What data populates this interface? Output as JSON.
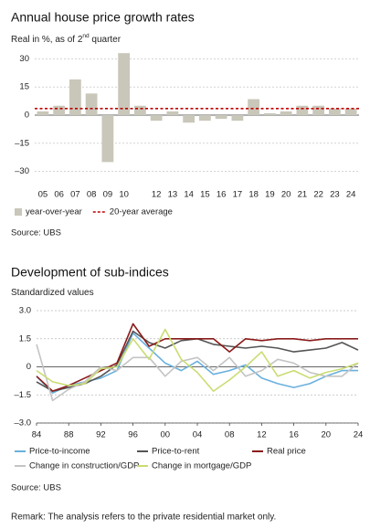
{
  "chart_data": [
    {
      "type": "bar",
      "title": "Annual house price growth rates",
      "subtitle": [
        "Real in %, as of 2",
        "nd",
        " quarter"
      ],
      "categories": [
        "05",
        "06",
        "07",
        "08",
        "09",
        "10",
        null,
        "12",
        "13",
        "14",
        "15",
        "16",
        "17",
        "18",
        "19",
        "20",
        "21",
        "22",
        "23",
        "24"
      ],
      "series": [
        {
          "name": "year-over-year",
          "color": "#c9c7b9",
          "values": [
            2,
            5,
            19,
            11.5,
            -25,
            33,
            5,
            -3,
            2,
            -4,
            -3,
            -2,
            -3,
            8.5,
            1,
            2,
            5,
            5,
            3.5,
            3.5
          ]
        }
      ],
      "reference_line": {
        "name": "20-year average",
        "value": 3.5,
        "color": "#c00000"
      },
      "ylim": [
        -36,
        36
      ],
      "yticks": [
        {
          "value": -30,
          "label": "–30"
        },
        {
          "value": -15,
          "label": "–15"
        },
        0,
        15,
        30
      ],
      "grid": true,
      "source": "Source: UBS"
    },
    {
      "type": "line",
      "title": "Development of sub-indices",
      "subtitle": [
        "Standardized values"
      ],
      "x": [
        1984,
        1986,
        1988,
        1990,
        1992,
        1994,
        1996,
        1998,
        2000,
        2002,
        2004,
        2006,
        2008,
        2010,
        2012,
        2014,
        2016,
        2018,
        2020,
        2022,
        2024
      ],
      "series": [
        {
          "name": "Price-to-income",
          "color": "#6ab0de",
          "values": [
            -0.5,
            -1.4,
            -1.0,
            -0.8,
            -0.6,
            -0.2,
            1.8,
            1.0,
            0.2,
            -0.2,
            0.3,
            -0.4,
            -0.2,
            0.1,
            -0.6,
            -0.9,
            -1.1,
            -0.9,
            -0.5,
            -0.2,
            -0.2
          ]
        },
        {
          "name": "Price-to-rent",
          "color": "#555555",
          "values": [
            -0.8,
            -1.3,
            -1.1,
            -0.9,
            -0.5,
            0.1,
            1.9,
            1.3,
            1.0,
            1.4,
            1.5,
            1.2,
            1.1,
            1.0,
            1.1,
            1.0,
            0.8,
            0.9,
            1.0,
            1.3,
            0.9
          ]
        },
        {
          "name": "Real price",
          "color": "#8b1a1a",
          "values": [
            -0.5,
            -1.3,
            -1.0,
            -0.6,
            -0.2,
            0.2,
            2.3,
            1.1,
            1.5,
            1.5,
            1.5,
            1.5,
            0.8,
            1.5,
            1.4,
            1.5,
            1.5,
            1.4,
            1.5,
            1.5,
            1.5
          ]
        },
        {
          "name": "Change in construction/GDP",
          "color": "#c4c4c4",
          "values": [
            1.2,
            -1.8,
            -1.2,
            -0.8,
            0.0,
            -0.2,
            0.5,
            0.5,
            -0.5,
            0.3,
            0.5,
            -0.2,
            0.5,
            -0.5,
            -0.2,
            0.4,
            0.2,
            -0.3,
            -0.5,
            -0.5,
            0.2
          ]
        },
        {
          "name": "Change in mortgage/GDP",
          "color": "#cadc72",
          "values": [
            -0.2,
            -0.8,
            -1.0,
            -0.9,
            -0.1,
            0.0,
            1.5,
            0.4,
            2.0,
            0.4,
            -0.3,
            -1.3,
            -0.7,
            0.0,
            0.8,
            -0.5,
            -0.2,
            -0.6,
            -0.3,
            -0.1,
            0.2
          ]
        }
      ],
      "xlim": [
        1984,
        2024
      ],
      "xticks": [
        {
          "value": 1984,
          "label": "84"
        },
        {
          "value": 1988,
          "label": "88"
        },
        {
          "value": 1992,
          "label": "92"
        },
        {
          "value": 1996,
          "label": "96"
        },
        {
          "value": 2000,
          "label": "00"
        },
        {
          "value": 2004,
          "label": "04"
        },
        {
          "value": 2008,
          "label": "08"
        },
        {
          "value": 2012,
          "label": "12"
        },
        {
          "value": 2016,
          "label": "16"
        },
        {
          "value": 2020,
          "label": "20"
        },
        {
          "value": 2024,
          "label": "24"
        }
      ],
      "ylim": [
        -3,
        3
      ],
      "yticks": [
        {
          "value": -3,
          "label": "–3.0"
        },
        {
          "value": -1.5,
          "label": "–1.5"
        },
        0,
        1.5,
        {
          "value": 3,
          "label": "3.0"
        }
      ],
      "grid": true,
      "source": "Source: UBS"
    }
  ],
  "remark": "Remark: The analysis refers to the private residential market only."
}
